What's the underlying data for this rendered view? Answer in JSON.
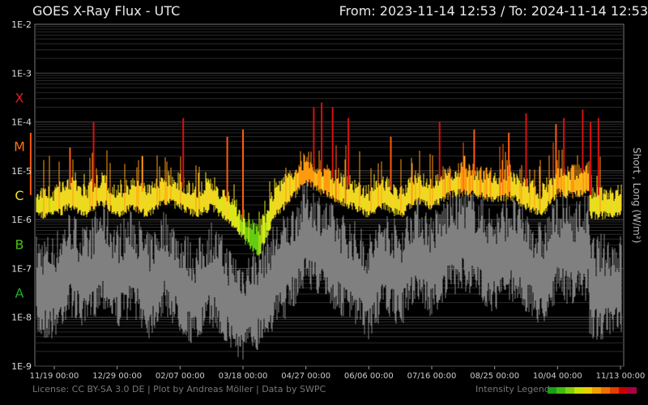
{
  "header": {
    "title": "GOES X-Ray Flux - UTC",
    "date_range": "From: 2023-11-14 12:53  /  To: 2024-11-14 12:53"
  },
  "footer": {
    "license": "License: CC BY-SA 3.0 DE | Plot by Andreas Möller | Data by SWPC",
    "legend_label": "Intensity Legend",
    "legend_colors": [
      "#1a9e1a",
      "#44bb11",
      "#7fd010",
      "#c8e000",
      "#e8d000",
      "#f0a000",
      "#f07000",
      "#e04000",
      "#cc0000",
      "#aa0044"
    ]
  },
  "chart_data": {
    "type": "line",
    "title": "GOES X-Ray Flux - UTC",
    "ylabel": "Short , Long (W/m²)",
    "xlabel": "",
    "yscale": "log",
    "ylim": [
      1e-09,
      0.01
    ],
    "y_ticks": [
      "1E-2",
      "1E-3",
      "1E-4",
      "1E-5",
      "1E-6",
      "1E-7",
      "1E-8",
      "1E-9"
    ],
    "flare_classes": [
      {
        "label": "X",
        "color": "#e02020"
      },
      {
        "label": "M",
        "color": "#ff7010"
      },
      {
        "label": "C",
        "color": "#e8e020"
      },
      {
        "label": "B",
        "color": "#4cbb17"
      },
      {
        "label": "A",
        "color": "#22aa22"
      }
    ],
    "x_ticks": [
      "11/19 00:00",
      "12/29 00:00",
      "02/07 00:00",
      "03/18 00:00",
      "04/27 00:00",
      "06/06 00:00",
      "07/16 00:00",
      "08/25 00:00",
      "10/04 00:00",
      "11/13 00:00"
    ],
    "grid": true,
    "series": [
      {
        "name": "Long",
        "color": "#e8e020",
        "x": [
          "11/19 00:00",
          "11/29 00:00",
          "12/09 00:00",
          "12/19 00:00",
          "12/29 00:00",
          "01/08 00:00",
          "01/18 00:00",
          "01/28 00:00",
          "02/07 00:00",
          "02/17 00:00",
          "02/27 00:00",
          "03/08 00:00",
          "03/18 00:00",
          "03/28 00:00",
          "04/07 00:00",
          "04/17 00:00",
          "04/27 00:00",
          "05/07 00:00",
          "05/17 00:00",
          "05/27 00:00",
          "06/06 00:00",
          "06/16 00:00",
          "06/26 00:00",
          "07/06 00:00",
          "07/16 00:00",
          "07/26 00:00",
          "08/05 00:00",
          "08/15 00:00",
          "08/25 00:00",
          "09/04 00:00",
          "09/14 00:00",
          "09/24 00:00",
          "10/04 00:00",
          "10/14 00:00",
          "10/24 00:00",
          "11/03 00:00",
          "11/13 00:00"
        ],
        "values": [
          2e-06,
          3e-06,
          2e-06,
          4e-06,
          2e-06,
          3e-06,
          2e-06,
          4e-06,
          3e-06,
          2e-06,
          3e-06,
          1.5e-06,
          7e-07,
          3e-07,
          2e-06,
          4e-06,
          1e-05,
          6e-06,
          4e-06,
          3e-06,
          2e-06,
          3e-06,
          2e-06,
          4e-06,
          3e-06,
          5e-06,
          6e-06,
          5e-06,
          4e-06,
          5e-06,
          3e-06,
          2e-06,
          6e-06,
          5e-06,
          6e-06,
          4e-06,
          2e-06
        ],
        "peaks": [
          {
            "x": "11/29 00:00",
            "value": 3e-05
          },
          {
            "x": "12/14 00:00",
            "value": 0.0001
          },
          {
            "x": "01/14 00:00",
            "value": 2e-05
          },
          {
            "x": "02/09 00:00",
            "value": 0.00012
          },
          {
            "x": "03/08 00:00",
            "value": 5e-05
          },
          {
            "x": "03/18 00:00",
            "value": 7e-05
          },
          {
            "x": "05/02 00:00",
            "value": 0.0002
          },
          {
            "x": "05/07 00:00",
            "value": 0.00025
          },
          {
            "x": "05/14 00:00",
            "value": 0.0002
          },
          {
            "x": "05/24 00:00",
            "value": 0.00012
          },
          {
            "x": "06/20 00:00",
            "value": 5e-05
          },
          {
            "x": "07/21 00:00",
            "value": 0.0001
          },
          {
            "x": "08/12 00:00",
            "value": 7e-05
          },
          {
            "x": "09/03 00:00",
            "value": 6e-05
          },
          {
            "x": "09/14 00:00",
            "value": 0.00015
          },
          {
            "x": "10/03 00:00",
            "value": 9e-05
          },
          {
            "x": "10/08 00:00",
            "value": 0.00012
          },
          {
            "x": "10/20 00:00",
            "value": 0.00018
          },
          {
            "x": "10/25 00:00",
            "value": 0.0001
          },
          {
            "x": "10/30 00:00",
            "value": 0.00012
          },
          {
            "x": "11/04 00:00",
            "value": 6e-05
          }
        ]
      },
      {
        "name": "Short",
        "color": "#808080",
        "x": [
          "11/19 00:00",
          "11/29 00:00",
          "12/09 00:00",
          "12/19 00:00",
          "12/29 00:00",
          "01/08 00:00",
          "01/18 00:00",
          "01/28 00:00",
          "02/07 00:00",
          "02/17 00:00",
          "02/27 00:00",
          "03/08 00:00",
          "03/18 00:00",
          "03/28 00:00",
          "04/07 00:00",
          "04/17 00:00",
          "04/27 00:00",
          "05/07 00:00",
          "05/17 00:00",
          "05/27 00:00",
          "06/06 00:00",
          "06/16 00:00",
          "06/26 00:00",
          "07/06 00:00",
          "07/16 00:00",
          "07/26 00:00",
          "08/05 00:00",
          "08/15 00:00",
          "08/25 00:00",
          "09/04 00:00",
          "09/14 00:00",
          "09/24 00:00",
          "10/04 00:00",
          "10/14 00:00",
          "10/24 00:00",
          "11/03 00:00",
          "11/13 00:00"
        ],
        "values": [
          3e-08,
          1e-07,
          4e-08,
          1.5e-07,
          5e-08,
          1e-07,
          3e-08,
          1e-07,
          4e-08,
          2e-08,
          6e-08,
          2e-08,
          1e-08,
          2e-08,
          5e-08,
          1e-07,
          4e-07,
          2e-07,
          1e-07,
          6e-08,
          3e-08,
          1e-07,
          5e-08,
          2e-07,
          8e-08,
          2e-07,
          3e-07,
          2e-07,
          1e-07,
          2e-07,
          1e-07,
          5e-08,
          2e-07,
          1.5e-07,
          2e-07,
          1e-07,
          3e-08
        ]
      }
    ]
  }
}
